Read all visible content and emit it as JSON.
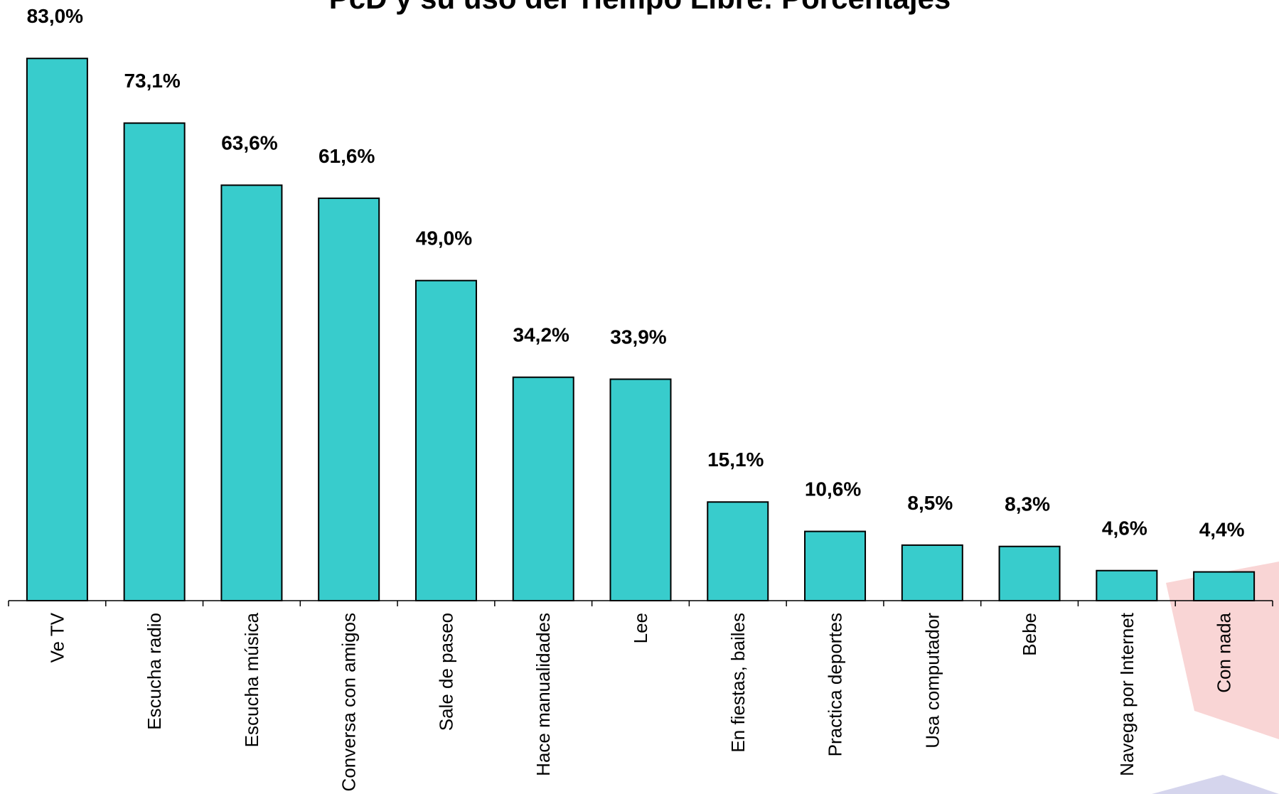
{
  "chart_data": {
    "type": "bar",
    "title": "PcD y su uso del Tiempo Libre: Porcentajes",
    "categories": [
      "Ve TV",
      "Escucha radio",
      "Escucha música",
      "Conversa con amigos",
      "Sale de paseo",
      "Hace manualidades",
      "Lee",
      "En fiestas, bailes",
      "Practica deportes",
      "Usa computador",
      "Bebe",
      "Navega por Internet",
      "Con nada"
    ],
    "values": [
      83.0,
      73.1,
      63.6,
      61.6,
      49.0,
      34.2,
      33.9,
      15.1,
      10.6,
      8.5,
      8.3,
      4.6,
      4.4
    ],
    "value_labels": [
      "83,0%",
      "73,1%",
      "63,6%",
      "61,6%",
      "49,0%",
      "34,2%",
      "33,9%",
      "15,1%",
      "10,6%",
      "8,5%",
      "8,3%",
      "4,6%",
      "4,4%"
    ],
    "color": "#38cccc"
  }
}
